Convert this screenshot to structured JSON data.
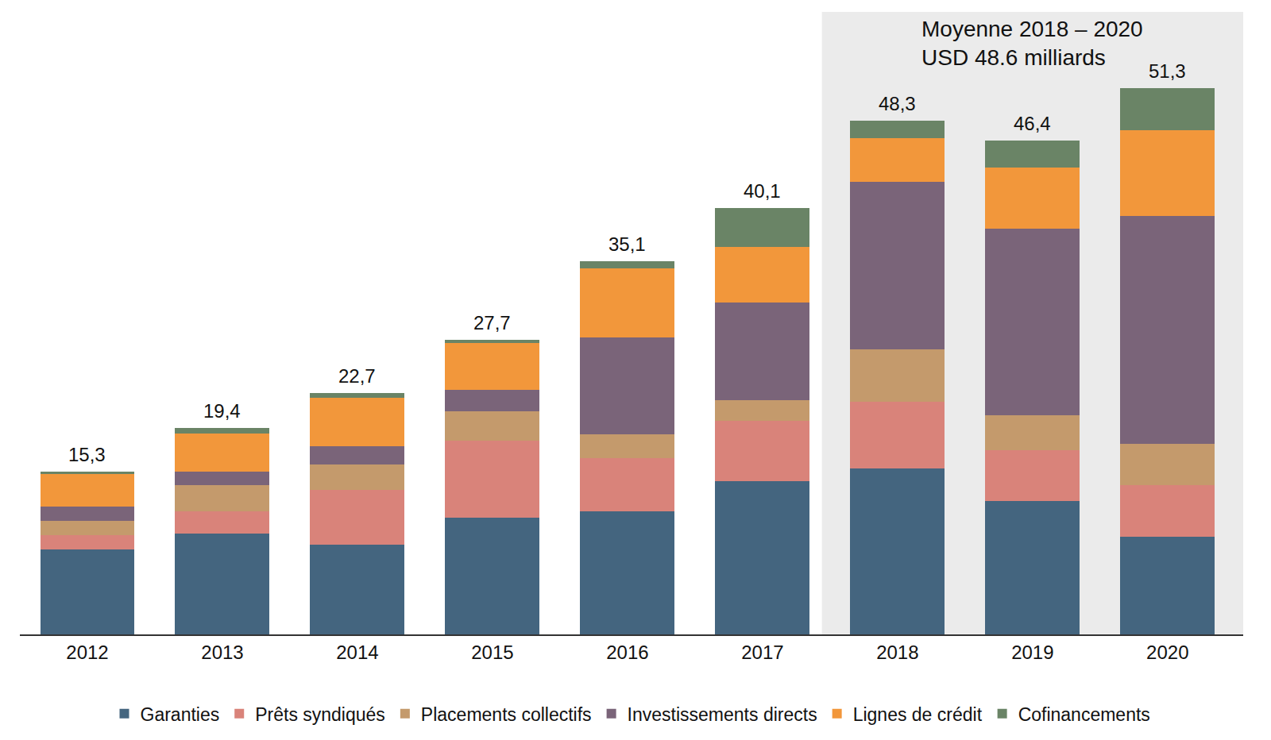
{
  "chart_data": {
    "type": "bar",
    "stacked": true,
    "tick_labels": "x",
    "grid": false,
    "legend": "bottom",
    "categories": [
      "2012",
      "2013",
      "2014",
      "2015",
      "2016",
      "2017",
      "2018",
      "2019",
      "2020"
    ],
    "ylim": [
      0,
      58.5
    ],
    "series": [
      {
        "name": "Garanties",
        "color": "#44657f",
        "values": [
          8.0,
          9.5,
          8.4,
          11.0,
          11.6,
          14.4,
          15.6,
          12.5,
          9.2
        ]
      },
      {
        "name": "Prêts syndiqués",
        "color": "#d9837a",
        "values": [
          1.3,
          2.1,
          5.2,
          7.2,
          5.0,
          5.7,
          6.3,
          4.8,
          4.8
        ]
      },
      {
        "name": "Placements collectifs",
        "color": "#c49a6c",
        "values": [
          1.4,
          2.4,
          2.4,
          2.8,
          2.2,
          1.9,
          4.9,
          3.3,
          3.9
        ]
      },
      {
        "name": "Investissements directs",
        "color": "#7a6479",
        "values": [
          1.3,
          1.3,
          1.7,
          2.0,
          9.1,
          9.2,
          15.7,
          17.5,
          21.4
        ]
      },
      {
        "name": "Lignes de crédit",
        "color": "#f2973b",
        "values": [
          3.1,
          3.6,
          4.5,
          4.4,
          6.5,
          5.2,
          4.1,
          5.8,
          8.1
        ]
      },
      {
        "name": "Cofinancements",
        "color": "#6a8466",
        "values": [
          0.2,
          0.5,
          0.5,
          0.3,
          0.7,
          3.7,
          1.7,
          2.5,
          3.9
        ]
      }
    ],
    "totals": [
      15.3,
      19.4,
      22.7,
      27.7,
      35.1,
      40.1,
      48.3,
      46.4,
      51.3
    ],
    "total_labels": [
      "15,3",
      "19,4",
      "22,7",
      "27,7",
      "35,1",
      "40,1",
      "48,3",
      "46,4",
      "51,3"
    ],
    "highlight": {
      "from": "2018",
      "to": "2020",
      "color": "#ebebeb",
      "annotation": [
        "Moyenne 2018 – 2020",
        "USD 48.6 milliards"
      ]
    }
  }
}
